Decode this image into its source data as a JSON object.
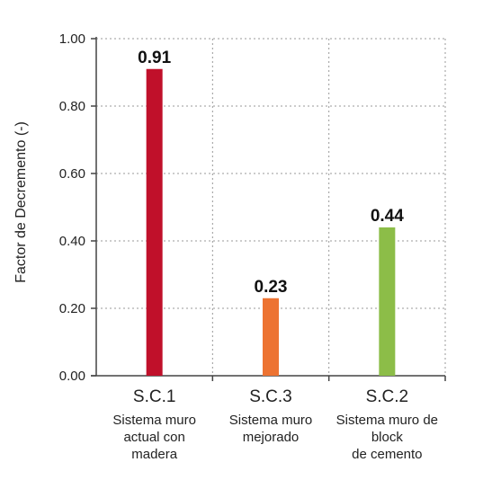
{
  "chart_data": {
    "type": "bar",
    "title": "",
    "xlabel": "",
    "ylabel": "Factor de Decremento (-)",
    "ylim": [
      0,
      1
    ],
    "yticks": [
      "0.00",
      "0.20",
      "0.40",
      "0.60",
      "0.80",
      "1.00"
    ],
    "grid": "dotted",
    "categories": [
      {
        "code": "S.C.1",
        "lines": [
          "Sistema muro",
          "actual con",
          "madera"
        ]
      },
      {
        "code": "S.C.3",
        "lines": [
          "Sistema muro",
          "mejorado"
        ]
      },
      {
        "code": "S.C.2",
        "lines": [
          "Sistema muro de",
          "block",
          "de cemento"
        ]
      }
    ],
    "values": [
      0.91,
      0.23,
      0.44
    ],
    "data_labels": [
      "0.91",
      "0.23",
      "0.44"
    ],
    "colors": [
      "#c0102a",
      "#ed7332",
      "#8cbd48"
    ],
    "axis_color": "#444444",
    "grid_color": "#9a9a9a"
  }
}
